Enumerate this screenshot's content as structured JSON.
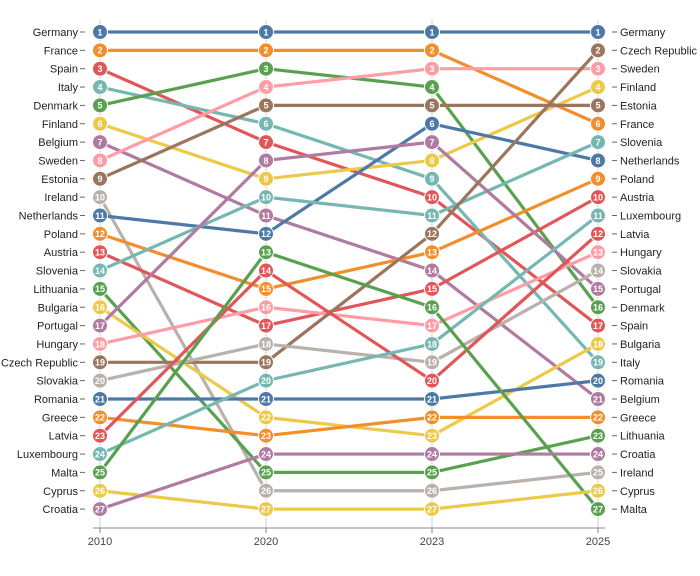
{
  "chart_data": {
    "type": "line",
    "subtype": "bump",
    "title": "",
    "xlabel": "",
    "ylabel": "",
    "x": [
      "2010",
      "2020",
      "2023",
      "2025"
    ],
    "rank_range": [
      1,
      27
    ],
    "grid": false,
    "legend": "none",
    "left_labels": [
      "Germany",
      "France",
      "Spain",
      "Italy",
      "Denmark",
      "Finland",
      "Belgium",
      "Sweden",
      "Estonia",
      "Ireland",
      "Netherlands",
      "Poland",
      "Austria",
      "Slovenia",
      "Lithuania",
      "Bulgaria",
      "Portugal",
      "Hungary",
      "Czech Republic",
      "Slovakia",
      "Romania",
      "Greece",
      "Latvia",
      "Luxembourg",
      "Malta",
      "Cyprus",
      "Croatia"
    ],
    "right_labels": [
      "Germany",
      "Czech Republic",
      "Sweden",
      "Finland",
      "Estonia",
      "France",
      "Slovenia",
      "Netherlands",
      "Poland",
      "Austria",
      "Luxembourg",
      "Latvia",
      "Hungary",
      "Slovakia",
      "Portugal",
      "Denmark",
      "Spain",
      "Bulgaria",
      "Italy",
      "Romania",
      "Belgium",
      "Greece",
      "Lithuania",
      "Croatia",
      "Ireland",
      "Cyprus",
      "Malta"
    ],
    "series": [
      {
        "name": "Germany",
        "color": "#4e79a7",
        "values": [
          1,
          1,
          1,
          1
        ]
      },
      {
        "name": "France",
        "color": "#f28e2b",
        "values": [
          2,
          2,
          2,
          6
        ]
      },
      {
        "name": "Spain",
        "color": "#e15759",
        "values": [
          3,
          7,
          10,
          17
        ]
      },
      {
        "name": "Italy",
        "color": "#76b7b2",
        "values": [
          4,
          6,
          9,
          19
        ]
      },
      {
        "name": "Denmark",
        "color": "#59a14f",
        "values": [
          5,
          3,
          4,
          16
        ]
      },
      {
        "name": "Finland",
        "color": "#edc948",
        "values": [
          6,
          9,
          8,
          4
        ]
      },
      {
        "name": "Belgium",
        "color": "#b07aa1",
        "values": [
          7,
          11,
          14,
          21
        ]
      },
      {
        "name": "Sweden",
        "color": "#ff9da7",
        "values": [
          8,
          4,
          3,
          3
        ]
      },
      {
        "name": "Estonia",
        "color": "#9c755f",
        "values": [
          9,
          5,
          5,
          5
        ]
      },
      {
        "name": "Ireland",
        "color": "#bab0ac",
        "values": [
          10,
          26,
          26,
          25
        ]
      },
      {
        "name": "Netherlands",
        "color": "#4e79a7",
        "values": [
          11,
          12,
          6,
          8
        ]
      },
      {
        "name": "Poland",
        "color": "#f28e2b",
        "values": [
          12,
          15,
          13,
          9
        ]
      },
      {
        "name": "Austria",
        "color": "#e15759",
        "values": [
          13,
          17,
          15,
          10
        ]
      },
      {
        "name": "Slovenia",
        "color": "#76b7b2",
        "values": [
          14,
          10,
          11,
          7
        ]
      },
      {
        "name": "Lithuania",
        "color": "#59a14f",
        "values": [
          15,
          25,
          25,
          23
        ]
      },
      {
        "name": "Bulgaria",
        "color": "#edc948",
        "values": [
          16,
          22,
          23,
          18
        ]
      },
      {
        "name": "Portugal",
        "color": "#b07aa1",
        "values": [
          17,
          8,
          7,
          15
        ]
      },
      {
        "name": "Hungary",
        "color": "#ff9da7",
        "values": [
          18,
          16,
          17,
          13
        ]
      },
      {
        "name": "Czech Republic",
        "color": "#9c755f",
        "values": [
          19,
          19,
          12,
          2
        ]
      },
      {
        "name": "Slovakia",
        "color": "#bab0ac",
        "values": [
          20,
          18,
          19,
          14
        ]
      },
      {
        "name": "Romania",
        "color": "#4e79a7",
        "values": [
          21,
          21,
          21,
          20
        ]
      },
      {
        "name": "Greece",
        "color": "#f28e2b",
        "values": [
          22,
          23,
          22,
          22
        ]
      },
      {
        "name": "Latvia",
        "color": "#e15759",
        "values": [
          23,
          14,
          20,
          12
        ]
      },
      {
        "name": "Luxembourg",
        "color": "#76b7b2",
        "values": [
          24,
          20,
          18,
          11
        ]
      },
      {
        "name": "Malta",
        "color": "#59a14f",
        "values": [
          25,
          13,
          16,
          27
        ]
      },
      {
        "name": "Cyprus",
        "color": "#edc948",
        "values": [
          26,
          27,
          27,
          26
        ]
      },
      {
        "name": "Croatia",
        "color": "#b07aa1",
        "values": [
          27,
          24,
          24,
          24
        ]
      }
    ]
  }
}
